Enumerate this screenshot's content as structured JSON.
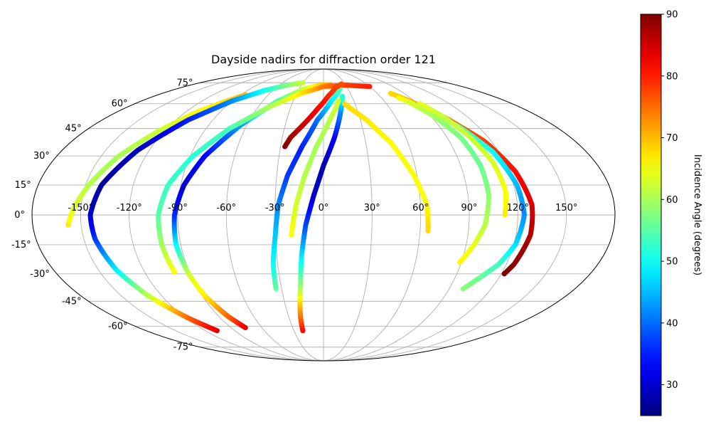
{
  "chart_data": {
    "type": "scatter",
    "projection": "mollweide",
    "title": "Dayside nadirs for diffraction order 121",
    "x_ticks": [
      {
        "value": -150,
        "label": "-150°"
      },
      {
        "value": -120,
        "label": "-120°"
      },
      {
        "value": -90,
        "label": "-90°"
      },
      {
        "value": -60,
        "label": "-60°"
      },
      {
        "value": -30,
        "label": "-30°"
      },
      {
        "value": 0,
        "label": "0°"
      },
      {
        "value": 30,
        "label": "30°"
      },
      {
        "value": 60,
        "label": "60°"
      },
      {
        "value": 90,
        "label": "90°"
      },
      {
        "value": 120,
        "label": "120°"
      },
      {
        "value": 150,
        "label": "150°"
      }
    ],
    "y_ticks": [
      {
        "value": 75,
        "label": "75°"
      },
      {
        "value": 60,
        "label": "60°"
      },
      {
        "value": 45,
        "label": "45°"
      },
      {
        "value": 30,
        "label": "30°"
      },
      {
        "value": 15,
        "label": "15°"
      },
      {
        "value": 0,
        "label": "0°"
      },
      {
        "value": -15,
        "label": "-15°"
      },
      {
        "value": -30,
        "label": "-30°"
      },
      {
        "value": -45,
        "label": "-45°"
      },
      {
        "value": -60,
        "label": "-60°"
      },
      {
        "value": -75,
        "label": "-75°"
      }
    ],
    "grid": true,
    "colorbar": {
      "label": "Incidence Angle (degrees)",
      "colormap": "jet",
      "range": [
        25,
        90
      ],
      "ticks": [
        {
          "value": 30,
          "label": "30"
        },
        {
          "value": 40,
          "label": "40"
        },
        {
          "value": 50,
          "label": "50"
        },
        {
          "value": 60,
          "label": "60"
        },
        {
          "value": 70,
          "label": "70"
        },
        {
          "value": 80,
          "label": "80"
        },
        {
          "value": 90,
          "label": "90"
        }
      ]
    },
    "tracks": [
      {
        "points": [
          [
            -158,
            -5,
            67
          ],
          [
            -155,
            2,
            64
          ],
          [
            -148,
            15,
            61
          ],
          [
            -138,
            30,
            60
          ],
          [
            -125,
            43,
            62
          ],
          [
            -110,
            55,
            65
          ],
          [
            -95,
            62,
            68
          ],
          [
            -85,
            66,
            70
          ]
        ]
      },
      {
        "points": [
          [
            -108,
            -63,
            84
          ],
          [
            -118,
            -55,
            76
          ],
          [
            -130,
            -42,
            62
          ],
          [
            -138,
            -28,
            49
          ],
          [
            -143,
            -12,
            37
          ],
          [
            -144,
            0,
            30
          ],
          [
            -140,
            15,
            27
          ],
          [
            -128,
            33,
            29
          ],
          [
            -110,
            50,
            35
          ],
          [
            -90,
            62,
            42
          ],
          [
            -70,
            69,
            50
          ],
          [
            -50,
            73,
            57
          ],
          [
            -30,
            75,
            62
          ]
        ]
      },
      {
        "points": [
          [
            -76,
            -61,
            84
          ],
          [
            -82,
            -54,
            76
          ],
          [
            -88,
            -42,
            67
          ],
          [
            -91,
            -30,
            63
          ],
          [
            -93,
            -15,
            50
          ],
          [
            -92,
            0,
            36
          ],
          [
            -88,
            15,
            30
          ],
          [
            -80,
            30,
            33
          ],
          [
            -65,
            47,
            43
          ],
          [
            -45,
            62,
            55
          ],
          [
            -25,
            70,
            62
          ],
          [
            -5,
            73,
            68
          ],
          [
            10,
            73,
            72
          ]
        ]
      },
      {
        "points": [
          [
            -100,
            -29,
            66
          ],
          [
            -102,
            -15,
            60
          ],
          [
            -102,
            0,
            55
          ],
          [
            -98,
            15,
            53
          ],
          [
            -88,
            30,
            52
          ],
          [
            -72,
            45,
            54
          ],
          [
            -50,
            58,
            60
          ],
          [
            -25,
            67,
            67
          ],
          [
            0,
            72,
            74
          ],
          [
            30,
            73,
            78
          ],
          [
            60,
            72,
            80
          ]
        ]
      },
      {
        "points": [
          [
            -34,
            -38,
            56
          ],
          [
            -33,
            -25,
            50
          ],
          [
            -30,
            -10,
            46
          ],
          [
            -28,
            5,
            42
          ],
          [
            -23,
            20,
            37
          ],
          [
            -15,
            35,
            35
          ],
          [
            -5,
            50,
            40
          ],
          [
            8,
            62,
            48
          ],
          [
            20,
            70,
            54
          ]
        ]
      },
      {
        "points": [
          [
            -21,
            -63,
            82
          ],
          [
            -20,
            -55,
            76
          ],
          [
            -18,
            -45,
            68
          ],
          [
            -16,
            -35,
            58
          ],
          [
            -14,
            -20,
            48
          ],
          [
            -11,
            -5,
            38
          ],
          [
            -6,
            10,
            30
          ],
          [
            0,
            25,
            28
          ],
          [
            8,
            40,
            33
          ],
          [
            15,
            55,
            42
          ],
          [
            20,
            65,
            52
          ]
        ]
      },
      {
        "points": [
          [
            -20,
            -10,
            66
          ],
          [
            -17,
            5,
            63
          ],
          [
            -12,
            20,
            61
          ],
          [
            -5,
            35,
            60
          ],
          [
            5,
            50,
            61
          ],
          [
            15,
            62,
            63
          ]
        ]
      },
      {
        "points": [
          [
            -27,
            35,
            90
          ],
          [
            -24,
            40,
            88
          ],
          [
            -15,
            48,
            85
          ],
          [
            -5,
            57,
            82
          ],
          [
            5,
            65,
            80
          ],
          [
            15,
            71,
            78
          ],
          [
            25,
            74,
            77
          ]
        ]
      },
      {
        "points": [
          [
            20,
            60,
            68
          ],
          [
            35,
            50,
            67
          ],
          [
            48,
            37,
            66
          ],
          [
            58,
            20,
            65
          ],
          [
            64,
            5,
            66
          ],
          [
            65,
            -8,
            68
          ]
        ]
      },
      {
        "points": [
          [
            75,
            67,
            68
          ],
          [
            85,
            62,
            70
          ],
          [
            100,
            52,
            74
          ],
          [
            115,
            38,
            78
          ],
          [
            124,
            22,
            81
          ],
          [
            129,
            5,
            84
          ],
          [
            129,
            -10,
            87
          ],
          [
            125,
            -25,
            89
          ],
          [
            122,
            -30,
            90
          ]
        ]
      },
      {
        "points": [
          [
            78,
            64,
            66
          ],
          [
            90,
            57,
            61
          ],
          [
            105,
            46,
            55
          ],
          [
            116,
            32,
            50
          ],
          [
            122,
            15,
            45
          ],
          [
            124,
            0,
            42
          ],
          [
            121,
            -15,
            47
          ],
          [
            115,
            -25,
            53
          ],
          [
            100,
            -38,
            58
          ]
        ]
      },
      {
        "points": [
          [
            82,
            62,
            64
          ],
          [
            92,
            53,
            60
          ],
          [
            100,
            40,
            57
          ],
          [
            103,
            25,
            56
          ],
          [
            103,
            10,
            58
          ],
          [
            100,
            -5,
            61
          ],
          [
            95,
            -15,
            64
          ],
          [
            89,
            -24,
            66
          ]
        ]
      },
      {
        "points": [
          [
            92,
            60,
            64
          ],
          [
            100,
            52,
            62
          ],
          [
            107,
            40,
            62
          ],
          [
            112,
            27,
            63
          ],
          [
            114,
            12,
            65
          ],
          [
            112,
            0,
            67
          ]
        ]
      }
    ]
  }
}
